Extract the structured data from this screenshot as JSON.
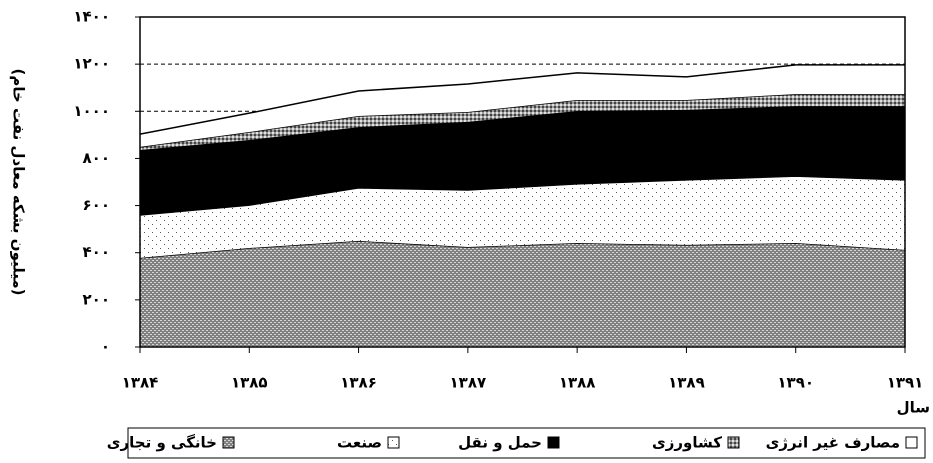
{
  "chart_data": {
    "type": "stacked_area",
    "x_label": "سال",
    "y_label": "(میلیون بشکه معادل نفت خام)",
    "categories": [
      "۱۳۸۴",
      "۱۳۸۵",
      "۱۳۸۶",
      "۱۳۸۷",
      "۱۳۸۸",
      "۱۳۸۹",
      "۱۳۹۰",
      "۱۳۹۱"
    ],
    "series": [
      {
        "name": "خانگی و تجاری",
        "color": "#808080",
        "values": [
          378,
          420,
          450,
          424,
          441,
          433,
          441,
          412
        ]
      },
      {
        "name": "صنعت",
        "color": "#ffffff",
        "values": [
          182,
          182,
          225,
          242,
          251,
          276,
          284,
          297
        ]
      },
      {
        "name": "حمل و نقل",
        "color": "#000000",
        "values": [
          276,
          276,
          258,
          289,
          309,
          297,
          297,
          313
        ]
      },
      {
        "name": "کشاورزی",
        "color": "#9a9a9a",
        "values": [
          13,
          34,
          47,
          42,
          47,
          42,
          51,
          51
        ]
      },
      {
        "name": "مصارف غیر انرژی",
        "color": "#ffffff",
        "values": [
          54,
          80,
          106,
          119,
          115,
          98,
          124,
          124
        ]
      }
    ],
    "ylim": [
      0,
      1400
    ],
    "yticks": [
      {
        "value": 0,
        "label": "۰"
      },
      {
        "value": 200,
        "label": "۲۰۰"
      },
      {
        "value": 400,
        "label": "۴۰۰"
      },
      {
        "value": 600,
        "label": "۶۰۰"
      },
      {
        "value": 800,
        "label": "۸۰۰"
      },
      {
        "value": 1000,
        "label": "۱۰۰۰"
      },
      {
        "value": 1200,
        "label": "۱۲۰۰"
      },
      {
        "value": 1400,
        "label": "۱۴۰۰"
      }
    ],
    "grid": true
  }
}
